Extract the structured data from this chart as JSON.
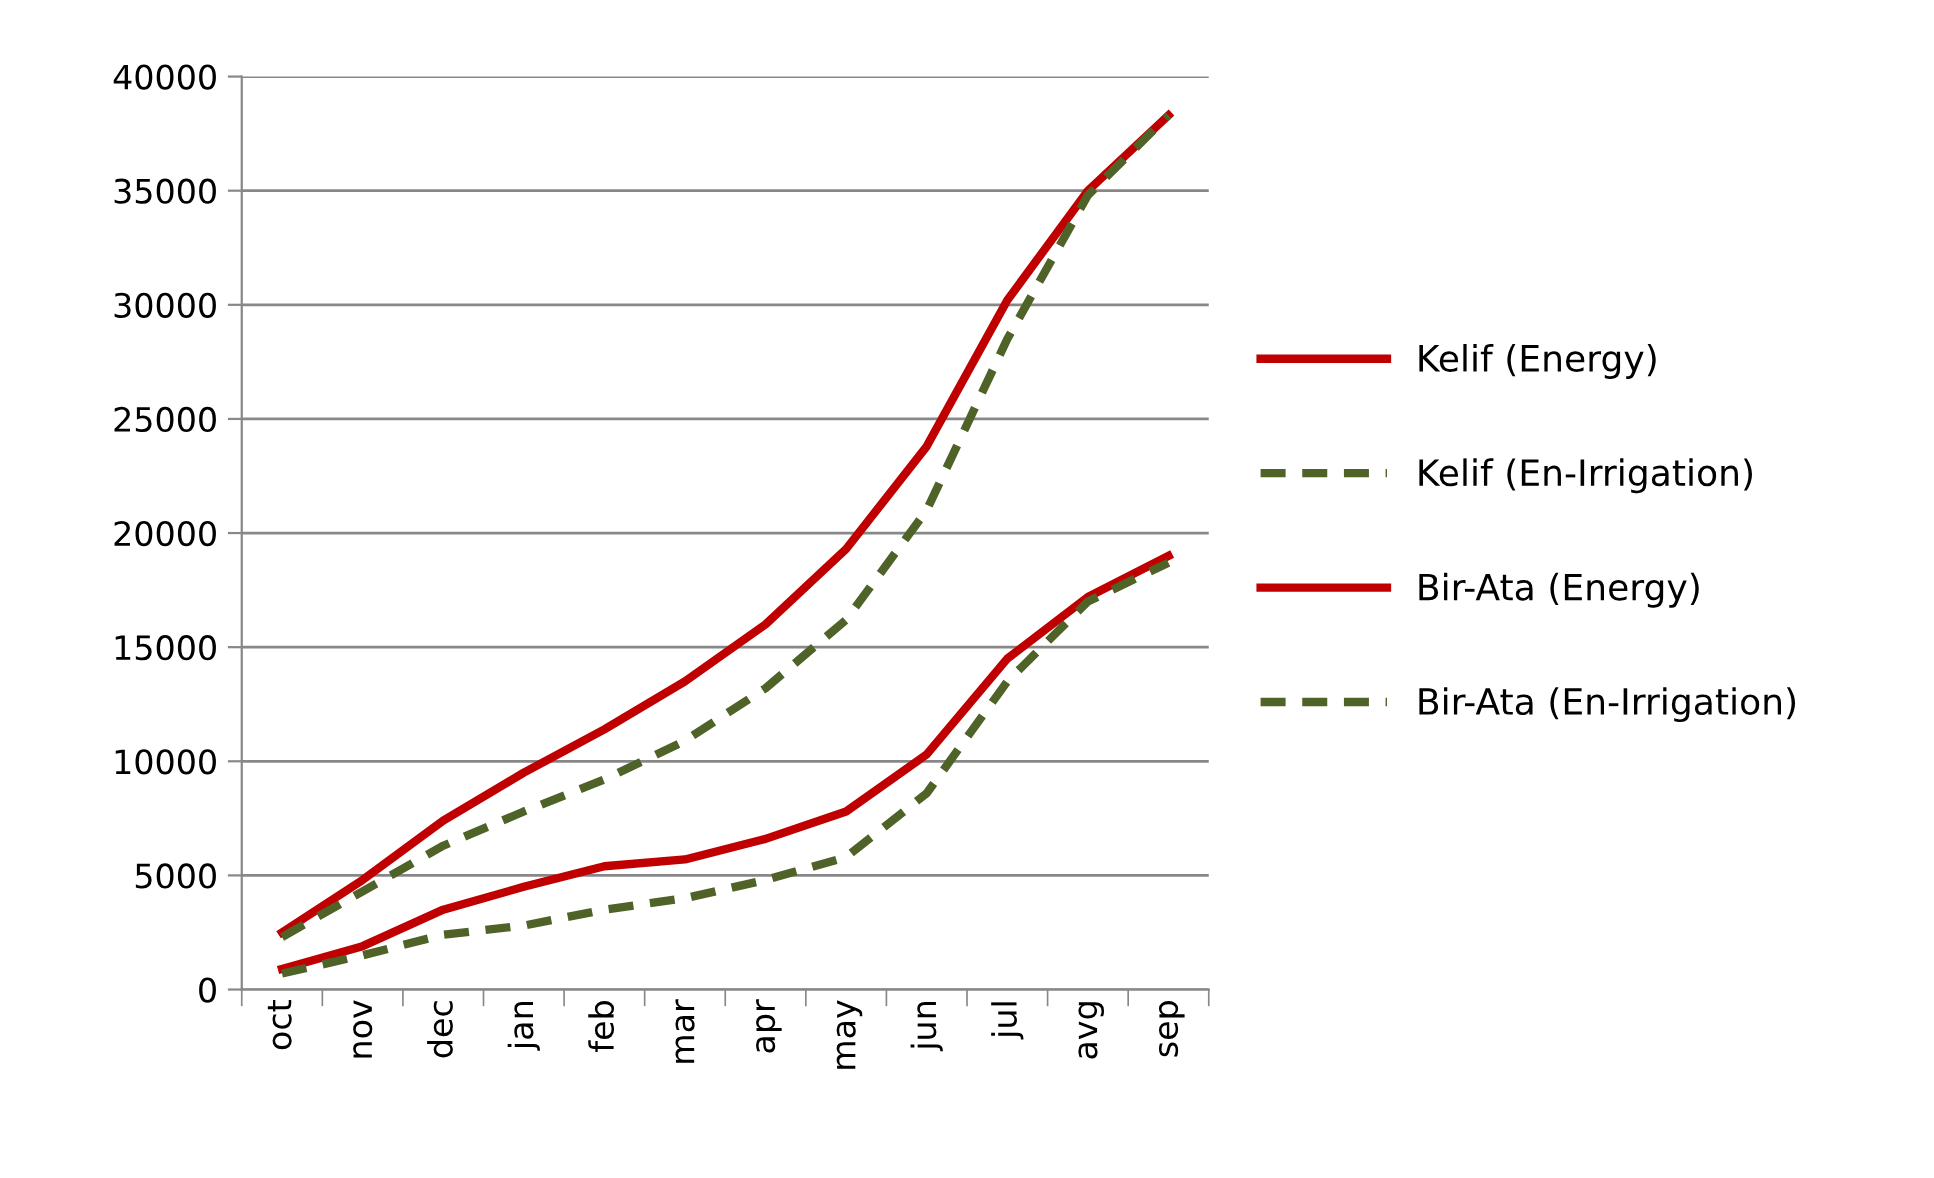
{
  "chart_data": {
    "type": "line",
    "categories": [
      "oct",
      "nov",
      "dec",
      "jan",
      "feb",
      "mar",
      "apr",
      "may",
      "jun",
      "jul",
      "avg",
      "sep"
    ],
    "series": [
      {
        "name": "Kelif (Energy)",
        "color": "#c00000",
        "line_style": "solid",
        "values": [
          2500,
          4800,
          7400,
          9500,
          11400,
          13500,
          16000,
          19300,
          23800,
          30200,
          35000,
          38300
        ]
      },
      {
        "name": "Kelif (En-Irrigation)",
        "color": "#4f6228",
        "line_style": "dashed",
        "values": [
          2300,
          4300,
          6300,
          7800,
          9200,
          10900,
          13200,
          16200,
          21000,
          28500,
          34800,
          38300
        ]
      },
      {
        "name": "Bir-Ata (Energy)",
        "color": "#c00000",
        "line_style": "solid",
        "values": [
          900,
          1900,
          3500,
          4500,
          5400,
          5700,
          6600,
          7800,
          10300,
          14500,
          17200,
          19000
        ]
      },
      {
        "name": "Bir-Ata (En-Irrigation)",
        "color": "#4f6228",
        "line_style": "dashed",
        "values": [
          700,
          1500,
          2400,
          2800,
          3500,
          4000,
          4800,
          5800,
          8600,
          13500,
          17000,
          18700
        ]
      }
    ],
    "ylim": [
      0,
      40000
    ],
    "yticks": [
      0,
      5000,
      10000,
      15000,
      20000,
      25000,
      30000,
      35000,
      40000
    ],
    "grid": "y",
    "legend": "right",
    "marker": "none"
  }
}
